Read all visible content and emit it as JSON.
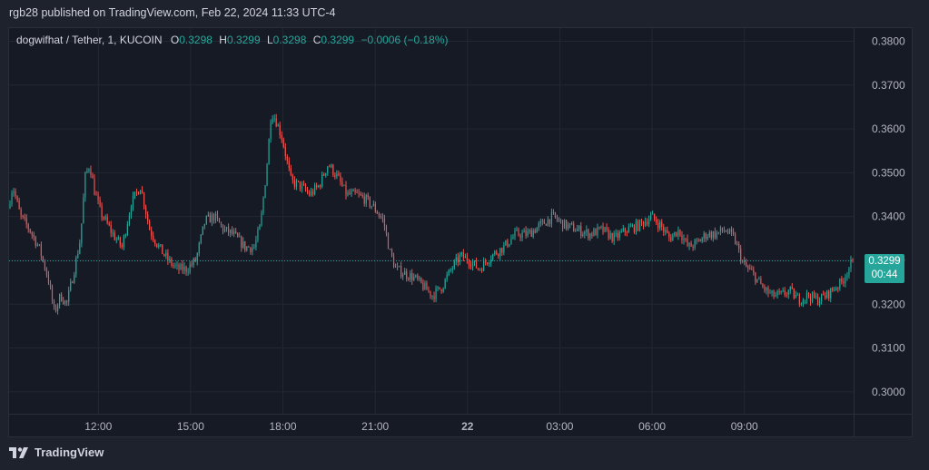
{
  "header": {
    "published": "rgb28 published on TradingView.com, Feb 22, 2024 11:33 UTC-4"
  },
  "legend": {
    "symbol": "dogwifhat / Tether, 1, KUCOIN",
    "o_label": "O",
    "o_value": "0.3298",
    "h_label": "H",
    "h_value": "0.3299",
    "l_label": "L",
    "l_value": "0.3298",
    "c_label": "C",
    "c_value": "0.3299",
    "change": "−0.0006 (−0.18%)"
  },
  "price_tag": {
    "price": "0.3299",
    "countdown": "00:44"
  },
  "footer": {
    "brand": "TradingView"
  },
  "colors": {
    "up": "#26a69a",
    "down": "#ef5350",
    "background": "#161a25",
    "grid": "#232733",
    "text": "#b2b5be"
  },
  "chart_data": {
    "type": "candlestick",
    "interval": "1 minute",
    "ylim": [
      0.295,
      0.383
    ],
    "y_ticks": [
      "0.3800",
      "0.3700",
      "0.3600",
      "0.3500",
      "0.3400",
      "0.3300",
      "0.3200",
      "0.3100",
      "0.3000"
    ],
    "y_tick_values": [
      0.38,
      0.37,
      0.36,
      0.35,
      0.34,
      0.33,
      0.32,
      0.31,
      0.3
    ],
    "x_ticks": [
      "12:00",
      "15:00",
      "18:00",
      "21:00",
      "22",
      "03:00",
      "06:00",
      "09:00"
    ],
    "x_tick_hours": [
      12,
      15,
      18,
      21,
      24,
      27,
      30,
      33
    ],
    "x_range_hours": [
      9.1,
      36.55
    ],
    "last_price": 0.3299,
    "price_path_hours": [
      9.1,
      9.25,
      9.5,
      9.8,
      10.1,
      10.4,
      10.6,
      10.8,
      11.0,
      11.25,
      11.45,
      11.6,
      11.75,
      11.9,
      12.1,
      12.5,
      12.8,
      13.1,
      13.4,
      13.7,
      14.0,
      14.3,
      14.6,
      14.9,
      15.2,
      15.5,
      15.8,
      16.1,
      16.4,
      16.8,
      17.1,
      17.3,
      17.5,
      17.65,
      17.8,
      18.0,
      18.3,
      18.6,
      18.9,
      19.2,
      19.5,
      19.8,
      20.1,
      20.4,
      20.7,
      21.0,
      21.3,
      21.5,
      21.7,
      22.0,
      22.3,
      22.6,
      22.9,
      23.2,
      23.5,
      23.8,
      24.1,
      24.4,
      24.8,
      25.2,
      25.6,
      26.0,
      26.4,
      26.8,
      27.2,
      27.6,
      28.0,
      28.4,
      28.8,
      29.2,
      29.6,
      30.0,
      30.3,
      30.6,
      30.9,
      31.2,
      31.5,
      31.8,
      32.1,
      32.4,
      32.7,
      33.0,
      33.3,
      33.6,
      33.9,
      34.2,
      34.5,
      34.8,
      35.1,
      35.4,
      35.7,
      36.0,
      36.2,
      36.4,
      36.55
    ],
    "price_path_values": [
      0.342,
      0.347,
      0.34,
      0.337,
      0.333,
      0.326,
      0.318,
      0.322,
      0.32,
      0.328,
      0.335,
      0.349,
      0.352,
      0.346,
      0.341,
      0.336,
      0.333,
      0.343,
      0.347,
      0.337,
      0.333,
      0.33,
      0.328,
      0.328,
      0.33,
      0.339,
      0.34,
      0.337,
      0.336,
      0.333,
      0.333,
      0.338,
      0.351,
      0.364,
      0.362,
      0.358,
      0.348,
      0.347,
      0.345,
      0.347,
      0.352,
      0.349,
      0.345,
      0.345,
      0.344,
      0.342,
      0.339,
      0.332,
      0.328,
      0.327,
      0.326,
      0.324,
      0.322,
      0.324,
      0.328,
      0.331,
      0.33,
      0.328,
      0.331,
      0.333,
      0.336,
      0.336,
      0.338,
      0.34,
      0.338,
      0.337,
      0.336,
      0.337,
      0.335,
      0.337,
      0.338,
      0.34,
      0.338,
      0.335,
      0.337,
      0.333,
      0.334,
      0.336,
      0.336,
      0.337,
      0.335,
      0.329,
      0.327,
      0.324,
      0.322,
      0.322,
      0.323,
      0.321,
      0.322,
      0.321,
      0.322,
      0.324,
      0.325,
      0.328,
      0.3299
    ]
  }
}
